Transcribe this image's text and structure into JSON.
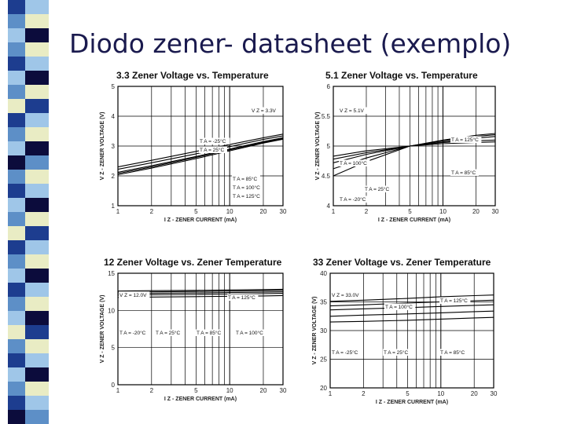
{
  "slide": {
    "title": "Diodo zener- datasheet (exemplo)"
  },
  "stripe_colors": [
    "#1d3d8f",
    "#5d8fc7",
    "#9fc6e8",
    "#e9ecc4",
    "#0c0c3c"
  ],
  "chart_data": [
    {
      "type": "line",
      "title": "3.3 Zener Voltage vs. Temperature",
      "xlabel": "I Z - ZENER CURRENT (mA)",
      "ylabel": "V Z - ZENER VOLTAGE (V)",
      "xscale": "log",
      "xlim": [
        1,
        30
      ],
      "ylim": [
        1,
        5
      ],
      "xticks": [
        "1",
        "2",
        "5",
        "10",
        "20",
        "30"
      ],
      "yticks": [
        "1",
        "2",
        "3",
        "4",
        "5"
      ],
      "annotations": [
        "V Z = 3.3V",
        "T A = -25°C",
        "T A = 25°C",
        "T A = 85°C",
        "T A = 100°C",
        "T A = 125°C"
      ],
      "series": [
        {
          "x": [
            1,
            2,
            5,
            10,
            20,
            30
          ],
          "y": [
            2.3,
            2.52,
            2.82,
            3.05,
            3.28,
            3.4
          ]
        },
        {
          "x": [
            1,
            2,
            5,
            10,
            20,
            30
          ],
          "y": [
            2.22,
            2.44,
            2.74,
            2.98,
            3.22,
            3.34
          ]
        },
        {
          "x": [
            1,
            2,
            5,
            10,
            20,
            30
          ],
          "y": [
            2.12,
            2.34,
            2.65,
            2.9,
            3.15,
            3.28
          ]
        },
        {
          "x": [
            1,
            2,
            5,
            10,
            20,
            30
          ],
          "y": [
            2.08,
            2.3,
            2.62,
            2.87,
            3.12,
            3.25
          ]
        },
        {
          "x": [
            1,
            2,
            5,
            10,
            20,
            30
          ],
          "y": [
            2.04,
            2.26,
            2.58,
            2.84,
            3.1,
            3.23
          ]
        }
      ]
    },
    {
      "type": "line",
      "title": "5.1 Zener Voltage vs. Temperature",
      "xlabel": "I Z - ZENER CURRENT (mA)",
      "ylabel": "V Z - ZENER VOLTAGE (V)",
      "xscale": "log",
      "xlim": [
        1,
        30
      ],
      "ylim": [
        4,
        6
      ],
      "xticks": [
        "1",
        "2",
        "5",
        "10",
        "20",
        "30"
      ],
      "yticks": [
        "4",
        "4.5",
        "5",
        "5.5",
        "6"
      ],
      "annotations": [
        "V Z = 5.1V",
        "T A = 125°C",
        "T A = 100°C",
        "T A = 85°C",
        "T A = 25°C",
        "T A = -20°C"
      ],
      "series": [
        {
          "x": [
            1,
            2,
            5,
            10,
            20,
            30
          ],
          "y": [
            4.72,
            4.86,
            5.0,
            5.1,
            5.18,
            5.21
          ]
        },
        {
          "x": [
            1,
            2,
            5,
            10,
            20,
            30
          ],
          "y": [
            4.78,
            4.89,
            5.0,
            5.09,
            5.16,
            5.19
          ]
        },
        {
          "x": [
            1,
            2,
            5,
            10,
            20,
            30
          ],
          "y": [
            4.83,
            4.92,
            5.0,
            5.07,
            5.13,
            5.16
          ]
        },
        {
          "x": [
            1,
            2,
            5,
            10,
            20,
            30
          ],
          "y": [
            4.62,
            4.8,
            5.0,
            5.06,
            5.09,
            5.1
          ]
        },
        {
          "x": [
            1,
            2,
            5,
            10,
            20,
            30
          ],
          "y": [
            4.5,
            4.74,
            5.0,
            5.04,
            5.06,
            5.07
          ]
        }
      ]
    },
    {
      "type": "line",
      "title": "12 Zener Voltage vs. Zener Temperature",
      "xlabel": "I Z - ZENER CURRENT (mA)",
      "ylabel": "V Z - ZENER VOLTAGE (V)",
      "xscale": "log",
      "xlim": [
        1,
        30
      ],
      "ylim": [
        0,
        15
      ],
      "xticks": [
        "1",
        "2",
        "5",
        "10",
        "20",
        "30"
      ],
      "yticks": [
        "0",
        "5",
        "10",
        "15"
      ],
      "annotations": [
        "V Z = 12.0V",
        "T A = 125°C",
        "T A = -20°C",
        "T A = 25°C",
        "T A = 85°C",
        "T A = 100°C"
      ],
      "series": [
        {
          "x": [
            1,
            2,
            5,
            10,
            20,
            30
          ],
          "y": [
            11.75,
            11.8,
            11.85,
            11.9,
            11.95,
            12.0
          ]
        },
        {
          "x": [
            1,
            2,
            5,
            10,
            20,
            30
          ],
          "y": [
            12.05,
            12.1,
            12.15,
            12.2,
            12.25,
            12.3
          ]
        },
        {
          "x": [
            1,
            2,
            5,
            10,
            20,
            30
          ],
          "y": [
            12.25,
            12.3,
            12.35,
            12.4,
            12.45,
            12.5
          ]
        },
        {
          "x": [
            1,
            2,
            5,
            10,
            20,
            30
          ],
          "y": [
            12.45,
            12.5,
            12.55,
            12.6,
            12.65,
            12.7
          ]
        },
        {
          "x": [
            1,
            2,
            5,
            10,
            20,
            30
          ],
          "y": [
            12.6,
            12.65,
            12.7,
            12.75,
            12.8,
            12.85
          ]
        }
      ]
    },
    {
      "type": "line",
      "title": "33 Zener Voltage vs. Zener Temperature",
      "xlabel": "I Z - ZENER CURRENT (mA)",
      "ylabel": "V Z - ZENER VOLTAGE (V)",
      "xscale": "log",
      "xlim": [
        1,
        30
      ],
      "ylim": [
        20,
        40
      ],
      "xticks": [
        "1",
        "2",
        "5",
        "10",
        "20",
        "30"
      ],
      "yticks": [
        "20",
        "25",
        "30",
        "35",
        "40"
      ],
      "annotations": [
        "V Z = 33.0V",
        "T A = 125°C",
        "T A = 100°C",
        "T A = -25°C",
        "T A = 25°C",
        "T A = 85°C"
      ],
      "series": [
        {
          "x": [
            1,
            2,
            5,
            10,
            20,
            30
          ],
          "y": [
            31.5,
            31.6,
            31.8,
            32.0,
            32.2,
            32.3
          ]
        },
        {
          "x": [
            1,
            2,
            5,
            10,
            20,
            30
          ],
          "y": [
            32.5,
            32.7,
            32.9,
            33.1,
            33.3,
            33.4
          ]
        },
        {
          "x": [
            1,
            2,
            5,
            10,
            20,
            30
          ],
          "y": [
            33.6,
            33.8,
            34.0,
            34.2,
            34.4,
            34.5
          ]
        },
        {
          "x": [
            1,
            2,
            5,
            10,
            20,
            30
          ],
          "y": [
            34.3,
            34.5,
            34.8,
            35.0,
            35.2,
            35.3
          ]
        },
        {
          "x": [
            1,
            2,
            5,
            10,
            20,
            30
          ],
          "y": [
            35.1,
            35.3,
            35.6,
            35.9,
            36.1,
            36.2
          ]
        }
      ]
    }
  ]
}
